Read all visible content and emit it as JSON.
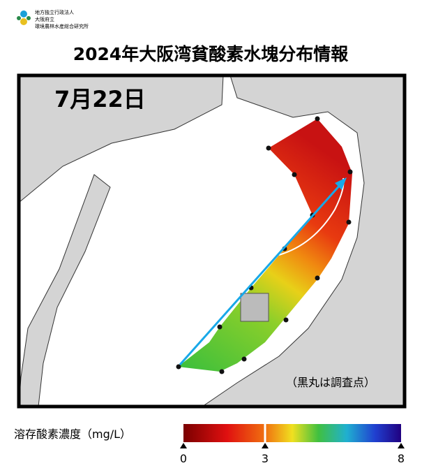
{
  "header": {
    "org_lines": [
      "地方独立行政法人",
      "大阪府立",
      "環境農林水産総合研究所"
    ],
    "title": "2024年大阪湾貧酸素水塊分布情報"
  },
  "map": {
    "date": "7月22日",
    "note": "（黒丸は調査点）"
  },
  "colorbar": {
    "label": "溶存酸素濃度（mg/L）",
    "range": [
      0,
      8
    ],
    "ticks": [
      0,
      3,
      8
    ]
  }
}
